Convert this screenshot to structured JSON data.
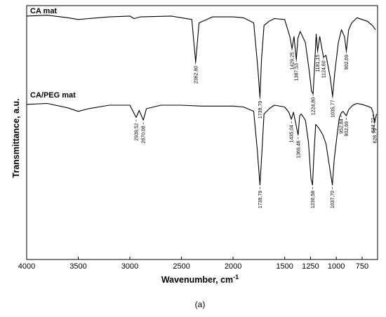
{
  "figure_caption": "(a)",
  "chart_data": {
    "type": "line",
    "xlabel": "Wavenumber, cm",
    "xlabel_superscript": "-1",
    "ylabel": "Transmittance, a.u.",
    "x_reversed": true,
    "xlim": [
      4000,
      600
    ],
    "xticks": [
      4000,
      3500,
      3000,
      2500,
      2000,
      1500,
      1250,
      1000,
      750
    ],
    "ytick_labels_shown": false,
    "grid": false,
    "series": [
      {
        "name": "CA mat",
        "color": "#000000",
        "points": [
          [
            4000,
            0.96
          ],
          [
            3800,
            0.97
          ],
          [
            3600,
            0.94
          ],
          [
            3500,
            0.92
          ],
          [
            3400,
            0.93
          ],
          [
            3200,
            0.95
          ],
          [
            3000,
            0.96
          ],
          [
            2960,
            0.93
          ],
          [
            2900,
            0.95
          ],
          [
            2600,
            0.96
          ],
          [
            2400,
            0.92
          ],
          [
            2362.8,
            0.42
          ],
          [
            2330,
            0.88
          ],
          [
            2200,
            0.95
          ],
          [
            2000,
            0.95
          ],
          [
            1900,
            0.94
          ],
          [
            1800,
            0.88
          ],
          [
            1760,
            0.35
          ],
          [
            1739.79,
            0.01
          ],
          [
            1725,
            0.45
          ],
          [
            1700,
            0.85
          ],
          [
            1650,
            0.9
          ],
          [
            1600,
            0.93
          ],
          [
            1500,
            0.92
          ],
          [
            1450,
            0.72
          ],
          [
            1429.25,
            0.58
          ],
          [
            1410,
            0.72
          ],
          [
            1387.53,
            0.45
          ],
          [
            1372,
            0.7
          ],
          [
            1350,
            0.78
          ],
          [
            1300,
            0.65
          ],
          [
            1260,
            0.3
          ],
          [
            1240,
            0.08
          ],
          [
            1224.8,
            0.05
          ],
          [
            1210,
            0.38
          ],
          [
            1195,
            0.75
          ],
          [
            1181.15,
            0.55
          ],
          [
            1160,
            0.72
          ],
          [
            1124.6,
            0.48
          ],
          [
            1100,
            0.5
          ],
          [
            1060,
            0.25
          ],
          [
            1035.77,
            0.02
          ],
          [
            1015,
            0.3
          ],
          [
            980,
            0.65
          ],
          [
            950,
            0.8
          ],
          [
            920,
            0.72
          ],
          [
            902.69,
            0.55
          ],
          [
            880,
            0.8
          ],
          [
            850,
            0.88
          ],
          [
            800,
            0.94
          ],
          [
            750,
            0.92
          ],
          [
            700,
            0.9
          ],
          [
            650,
            0.85
          ],
          [
            620,
            0.8
          ]
        ]
      },
      {
        "name": "CA/PEG mat",
        "color": "#000000",
        "points": [
          [
            4000,
            0.93
          ],
          [
            3800,
            0.94
          ],
          [
            3600,
            0.89
          ],
          [
            3500,
            0.85
          ],
          [
            3400,
            0.88
          ],
          [
            3200,
            0.92
          ],
          [
            3000,
            0.92
          ],
          [
            2939.52,
            0.78
          ],
          [
            2910,
            0.86
          ],
          [
            2870.08,
            0.75
          ],
          [
            2840,
            0.88
          ],
          [
            2700,
            0.92
          ],
          [
            2500,
            0.92
          ],
          [
            2300,
            0.91
          ],
          [
            2000,
            0.91
          ],
          [
            1900,
            0.9
          ],
          [
            1800,
            0.85
          ],
          [
            1765,
            0.4
          ],
          [
            1739.79,
            0.01
          ],
          [
            1720,
            0.4
          ],
          [
            1700,
            0.82
          ],
          [
            1650,
            0.88
          ],
          [
            1600,
            0.92
          ],
          [
            1500,
            0.9
          ],
          [
            1460,
            0.84
          ],
          [
            1435.04,
            0.76
          ],
          [
            1415,
            0.84
          ],
          [
            1369.46,
            0.58
          ],
          [
            1355,
            0.8
          ],
          [
            1340,
            0.82
          ],
          [
            1300,
            0.75
          ],
          [
            1270,
            0.5
          ],
          [
            1245,
            0.08
          ],
          [
            1230.58,
            0.01
          ],
          [
            1215,
            0.4
          ],
          [
            1200,
            0.7
          ],
          [
            1170,
            0.66
          ],
          [
            1130,
            0.58
          ],
          [
            1100,
            0.48
          ],
          [
            1070,
            0.25
          ],
          [
            1037.7,
            0.01
          ],
          [
            1020,
            0.3
          ],
          [
            990,
            0.6
          ],
          [
            970,
            0.78
          ],
          [
            952.84,
            0.83
          ],
          [
            935,
            0.85
          ],
          [
            902.69,
            0.8
          ],
          [
            880,
            0.87
          ],
          [
            840,
            0.92
          ],
          [
            800,
            0.94
          ],
          [
            750,
            0.93
          ],
          [
            700,
            0.91
          ],
          [
            660,
            0.89
          ],
          [
            644.22,
            0.84
          ],
          [
            628.79,
            0.72
          ],
          [
            610,
            0.82
          ]
        ]
      }
    ],
    "peak_labels": [
      {
        "series": 0,
        "x": 2362.8,
        "text": "2362,80"
      },
      {
        "series": 0,
        "x": 1739.79,
        "text": "1739,79"
      },
      {
        "series": 0,
        "x": 1429.25,
        "text": "1429,25"
      },
      {
        "series": 0,
        "x": 1387.53,
        "text": "1387,53"
      },
      {
        "series": 0,
        "x": 1224.8,
        "text": "1224,80"
      },
      {
        "series": 0,
        "x": 1181.15,
        "text": "1181,15"
      },
      {
        "series": 0,
        "x": 1124.6,
        "text": "1124,60"
      },
      {
        "series": 0,
        "x": 1035.77,
        "text": "1035,77"
      },
      {
        "series": 0,
        "x": 902.69,
        "text": "902,69"
      },
      {
        "series": 1,
        "x": 2939.52,
        "text": "2939,52"
      },
      {
        "series": 1,
        "x": 2870.08,
        "text": "2870,08"
      },
      {
        "series": 1,
        "x": 1739.79,
        "text": "1739,79"
      },
      {
        "series": 1,
        "x": 1435.04,
        "text": "1435,04"
      },
      {
        "series": 1,
        "x": 1369.46,
        "text": "1369,46"
      },
      {
        "series": 1,
        "x": 1230.58,
        "text": "1230,58"
      },
      {
        "series": 1,
        "x": 1037.7,
        "text": "1037,70"
      },
      {
        "series": 1,
        "x": 952.84,
        "text": "952,84"
      },
      {
        "series": 1,
        "x": 902.69,
        "text": "902,69"
      },
      {
        "series": 1,
        "x": 644.22,
        "text": "644,22"
      },
      {
        "series": 1,
        "x": 628.79,
        "text": "628,79"
      }
    ]
  }
}
